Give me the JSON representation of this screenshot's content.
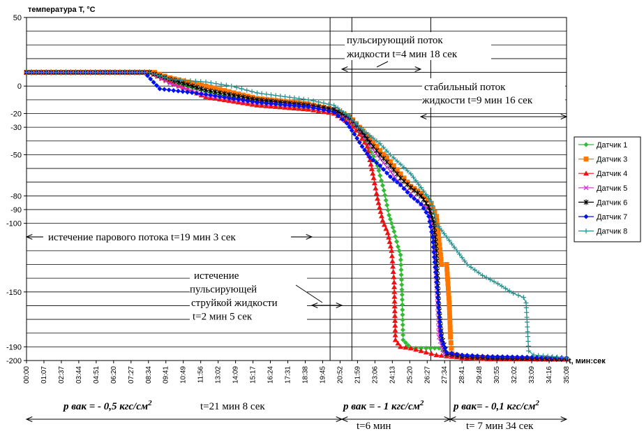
{
  "chart_data": {
    "type": "line",
    "ylabel": "температура T, °С",
    "xlabel": "t, мин:сек",
    "ylim": [
      -200,
      50
    ],
    "xlim_sec": [
      0,
      2108
    ],
    "ytick_values": [
      50,
      0,
      -20,
      -30,
      -50,
      -80,
      -90,
      -100,
      -150,
      -190,
      -200
    ],
    "ytick_labels": [
      "50",
      "0",
      "-20",
      "-30",
      "-50",
      "-80",
      "-90",
      "-100",
      "-150",
      "-190",
      "-200"
    ],
    "xtick_labels": [
      "00:00",
      "01:07",
      "02:37",
      "03:44",
      "04:51",
      "06:20",
      "07:27",
      "08:34",
      "09:41",
      "10:49",
      "11:56",
      "13:02",
      "14:09",
      "15:17",
      "16:24",
      "17:31",
      "18:38",
      "19:45",
      "20:52",
      "21:59",
      "23:06",
      "24:13",
      "25:20",
      "26:27",
      "27:34",
      "28:41",
      "29:48",
      "30:55",
      "32:02",
      "33:09",
      "34:16",
      "35:08"
    ],
    "grid": true,
    "legend_position": "right",
    "series": [
      {
        "name": "Датчик 1",
        "color": "#33bb33",
        "marker": "diamond",
        "points": [
          [
            0,
            10
          ],
          [
            480,
            10
          ],
          [
            560,
            4
          ],
          [
            700,
            -4
          ],
          [
            900,
            -12
          ],
          [
            1100,
            -16
          ],
          [
            1200,
            -18
          ],
          [
            1260,
            -25
          ],
          [
            1290,
            -30
          ],
          [
            1320,
            -40
          ],
          [
            1345,
            -48
          ],
          [
            1370,
            -58
          ],
          [
            1395,
            -76
          ],
          [
            1415,
            -94
          ],
          [
            1435,
            -106
          ],
          [
            1450,
            -117
          ],
          [
            1460,
            -123
          ],
          [
            1466,
            -152
          ],
          [
            1470,
            -185
          ],
          [
            1480,
            -187
          ],
          [
            1500,
            -191
          ],
          [
            1560,
            -191
          ],
          [
            1610,
            -191
          ],
          [
            1640,
            -195
          ],
          [
            1700,
            -197
          ],
          [
            1800,
            -198
          ],
          [
            1900,
            -198
          ],
          [
            2000,
            -199
          ],
          [
            2108,
            -199
          ]
        ]
      },
      {
        "name": "Датчик 3",
        "color": "#ff7700",
        "marker": "square",
        "points": [
          [
            0,
            10
          ],
          [
            500,
            10
          ],
          [
            560,
            6
          ],
          [
            700,
            0
          ],
          [
            900,
            -9
          ],
          [
            1100,
            -13
          ],
          [
            1200,
            -17
          ],
          [
            1260,
            -22
          ],
          [
            1300,
            -30
          ],
          [
            1340,
            -38
          ],
          [
            1380,
            -47
          ],
          [
            1420,
            -55
          ],
          [
            1460,
            -64
          ],
          [
            1500,
            -73
          ],
          [
            1540,
            -78
          ],
          [
            1580,
            -86
          ],
          [
            1600,
            -95
          ],
          [
            1610,
            -112
          ],
          [
            1620,
            -130
          ],
          [
            1640,
            -130
          ],
          [
            1650,
            -158
          ],
          [
            1655,
            -183
          ],
          [
            1660,
            -195
          ],
          [
            1700,
            -197
          ],
          [
            1800,
            -198
          ],
          [
            2000,
            -199
          ],
          [
            2108,
            -199
          ]
        ]
      },
      {
        "name": "Датчик 4",
        "color": "#ee1111",
        "marker": "triangle",
        "points": [
          [
            0,
            10
          ],
          [
            480,
            10
          ],
          [
            560,
            3
          ],
          [
            700,
            -8
          ],
          [
            900,
            -14
          ],
          [
            1100,
            -17
          ],
          [
            1200,
            -20
          ],
          [
            1260,
            -27
          ],
          [
            1300,
            -35
          ],
          [
            1330,
            -44
          ],
          [
            1355,
            -67
          ],
          [
            1370,
            -82
          ],
          [
            1390,
            -98
          ],
          [
            1410,
            -107
          ],
          [
            1425,
            -120
          ],
          [
            1435,
            -143
          ],
          [
            1440,
            -185
          ],
          [
            1460,
            -190
          ],
          [
            1500,
            -191
          ],
          [
            1560,
            -194
          ],
          [
            1600,
            -196
          ],
          [
            1700,
            -198
          ],
          [
            1800,
            -199
          ],
          [
            2108,
            -199
          ]
        ]
      },
      {
        "name": "Датчик 5",
        "color": "#cc33cc",
        "marker": "x",
        "points": [
          [
            0,
            10
          ],
          [
            480,
            10
          ],
          [
            560,
            2
          ],
          [
            700,
            -7
          ],
          [
            900,
            -12
          ],
          [
            1100,
            -15
          ],
          [
            1200,
            -18
          ],
          [
            1260,
            -24
          ],
          [
            1300,
            -32
          ],
          [
            1340,
            -43
          ],
          [
            1380,
            -53
          ],
          [
            1420,
            -62
          ],
          [
            1460,
            -72
          ],
          [
            1500,
            -78
          ],
          [
            1540,
            -86
          ],
          [
            1570,
            -89
          ],
          [
            1590,
            -110
          ],
          [
            1600,
            -140
          ],
          [
            1610,
            -183
          ],
          [
            1630,
            -195
          ],
          [
            1700,
            -197
          ],
          [
            1800,
            -198
          ],
          [
            2108,
            -199
          ]
        ]
      },
      {
        "name": "Датчик 6",
        "color": "#000000",
        "marker": "star",
        "points": [
          [
            0,
            10
          ],
          [
            480,
            10
          ],
          [
            560,
            5
          ],
          [
            700,
            -3
          ],
          [
            900,
            -10
          ],
          [
            1100,
            -14
          ],
          [
            1200,
            -17
          ],
          [
            1260,
            -23
          ],
          [
            1300,
            -31
          ],
          [
            1340,
            -41
          ],
          [
            1380,
            -50
          ],
          [
            1420,
            -58
          ],
          [
            1460,
            -67
          ],
          [
            1500,
            -74
          ],
          [
            1540,
            -80
          ],
          [
            1570,
            -88
          ],
          [
            1590,
            -100
          ],
          [
            1600,
            -120
          ],
          [
            1610,
            -160
          ],
          [
            1620,
            -182
          ],
          [
            1640,
            -195
          ],
          [
            1700,
            -197
          ],
          [
            1800,
            -198
          ],
          [
            2108,
            -199
          ]
        ]
      },
      {
        "name": "Датчик 7",
        "color": "#0011ee",
        "marker": "diamond",
        "points": [
          [
            0,
            10
          ],
          [
            460,
            10
          ],
          [
            520,
            -2
          ],
          [
            700,
            -6
          ],
          [
            900,
            -12
          ],
          [
            1100,
            -15
          ],
          [
            1200,
            -19
          ],
          [
            1250,
            -27
          ],
          [
            1280,
            -35
          ],
          [
            1310,
            -44
          ],
          [
            1340,
            -52
          ],
          [
            1380,
            -58
          ],
          [
            1420,
            -66
          ],
          [
            1460,
            -72
          ],
          [
            1500,
            -80
          ],
          [
            1540,
            -86
          ],
          [
            1570,
            -95
          ],
          [
            1585,
            -110
          ],
          [
            1600,
            -143
          ],
          [
            1610,
            -165
          ],
          [
            1620,
            -185
          ],
          [
            1640,
            -194
          ],
          [
            1700,
            -196
          ],
          [
            1800,
            -197
          ],
          [
            2108,
            -198
          ]
        ]
      },
      {
        "name": "Датчик 8",
        "color": "#2a8f8f",
        "marker": "plus",
        "points": [
          [
            0,
            10
          ],
          [
            480,
            10
          ],
          [
            560,
            5
          ],
          [
            700,
            3
          ],
          [
            800,
            0
          ],
          [
            900,
            -5
          ],
          [
            1100,
            -10
          ],
          [
            1200,
            -14
          ],
          [
            1260,
            -22
          ],
          [
            1300,
            -30
          ],
          [
            1340,
            -36
          ],
          [
            1380,
            -42
          ],
          [
            1420,
            -50
          ],
          [
            1460,
            -57
          ],
          [
            1500,
            -64
          ],
          [
            1540,
            -74
          ],
          [
            1580,
            -84
          ],
          [
            1600,
            -100
          ],
          [
            1640,
            -110
          ],
          [
            1680,
            -120
          ],
          [
            1720,
            -130
          ],
          [
            1780,
            -138
          ],
          [
            1840,
            -144
          ],
          [
            1900,
            -151
          ],
          [
            1940,
            -154
          ],
          [
            1950,
            -158
          ],
          [
            1960,
            -193
          ],
          [
            1980,
            -196
          ],
          [
            2108,
            -198
          ]
        ]
      }
    ]
  },
  "annotations": {
    "pulsing_flow": [
      "пульсирующий поток",
      "жидкости  t=4 мин 18 сек"
    ],
    "stable_flow": [
      "стабильный поток",
      "жидкости  t=9 мин 16 сек"
    ],
    "vapor_flow": "истечение парового потока t=19 мин 3 сек",
    "pulsing_jet": [
      "истечение",
      "пульсирующей",
      "струйкой жидкости",
      "t=2 мин 5 сек"
    ],
    "p1": "р вак = - 0,5 кгс/см",
    "t1": "t=21 мин 8 сек",
    "p2": "р вак = - 1 кгс/см",
    "t2": "t=6 мин",
    "p3": "р вак= - 0,1 кгс/см",
    "t3": "t= 7 мин 34 сек",
    "sup": "2"
  }
}
